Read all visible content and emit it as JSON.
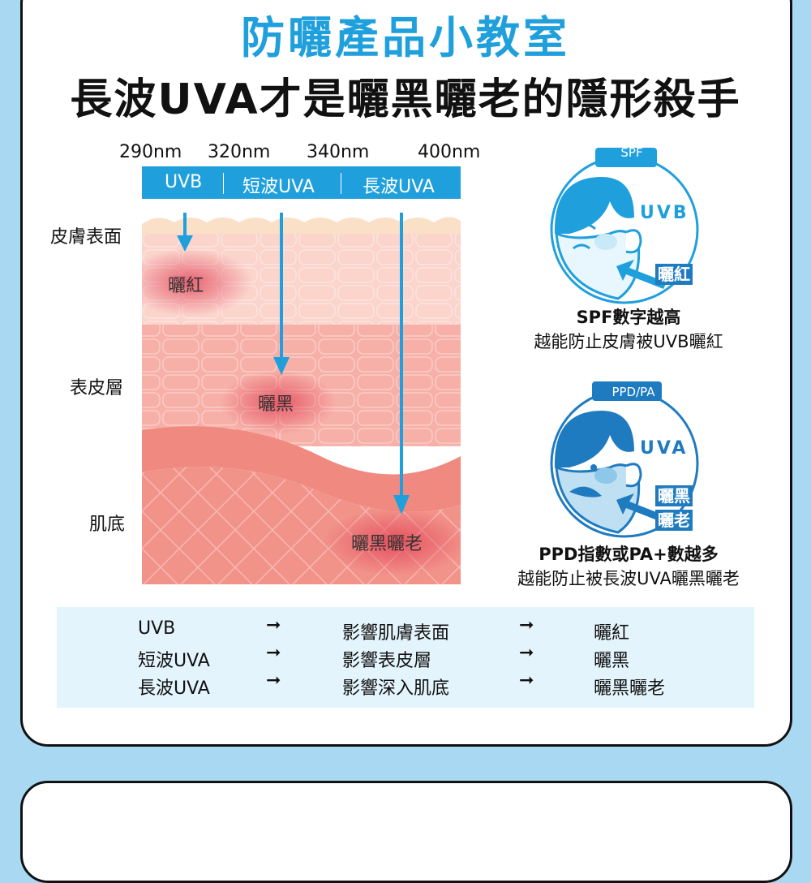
{
  "title": "防曬產品小教室",
  "subtitle": "長波UVA才是曬黑曬老的隱形殺手",
  "wavelengths": [
    "290nm",
    "320nm",
    "340nm",
    "400nm"
  ],
  "bands": [
    "UVB",
    "短波UVA",
    "長波UVA"
  ],
  "layers": [
    "皮膚表面",
    "表皮層",
    "肌底"
  ],
  "effects": [
    "曬紅",
    "曬黑",
    "曬黑曬老"
  ],
  "spf_panel": {
    "badge": "SPF",
    "ray": "UVB",
    "tag": "曬紅",
    "caption_line1": "SPF數字越高",
    "caption_line2": "越能防止皮膚被UVB曬紅"
  },
  "ppd_panel": {
    "badge": "PPD/PA",
    "ray": "UVA",
    "tag1": "曬黑",
    "tag2": "曬老",
    "caption_line1": "PPD指數或PA+數越多",
    "caption_line2": "越能防止被長波UVA曬黑曬老"
  },
  "summary_rows": [
    {
      "ray": "UVB",
      "impact": "影響肌膚表面",
      "result": "曬紅"
    },
    {
      "ray": "短波UVA",
      "impact": "影響表皮層",
      "result": "曬黑"
    },
    {
      "ray": "長波UVA",
      "impact": "影響深入肌底",
      "result": "曬黑曬老"
    }
  ],
  "colors": {
    "accent": "#1fa0dc",
    "background": "#a9d8f3",
    "dark_blue": "#1f7bc0"
  }
}
